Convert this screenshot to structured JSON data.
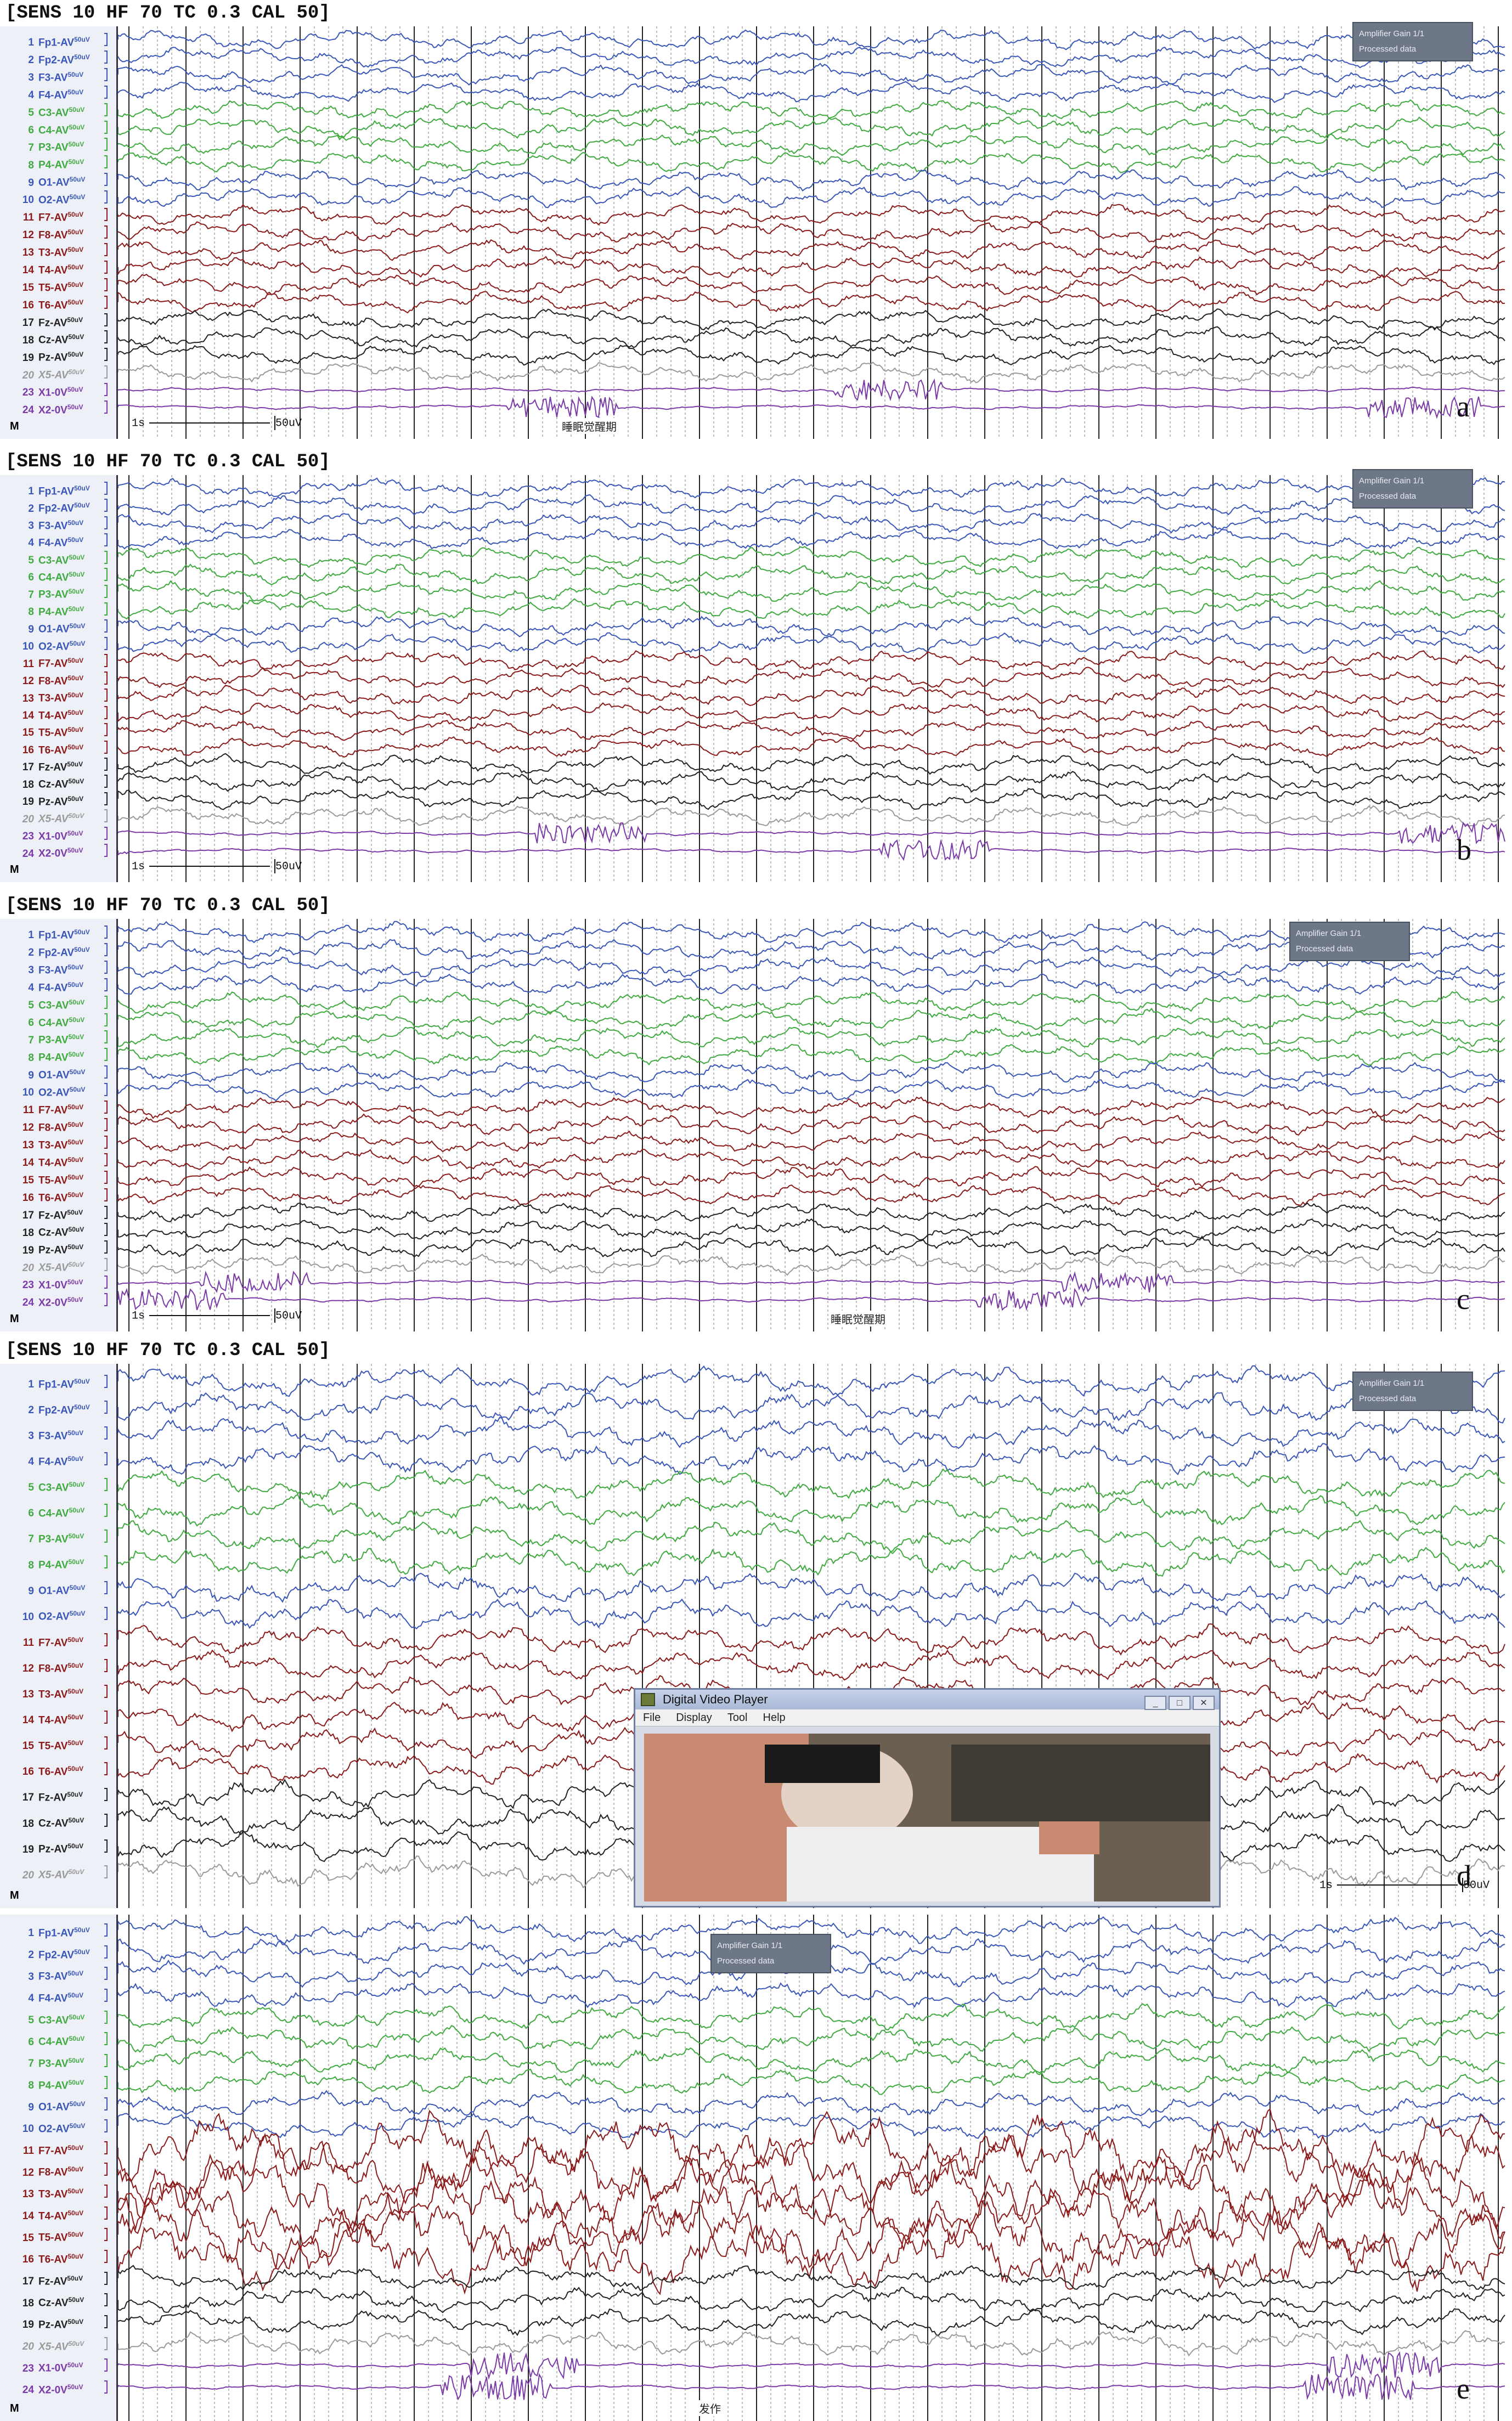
{
  "header_text": "[SENS 10  HF 70  TC 0.3  CAL 50]",
  "channels": [
    {
      "num": "1",
      "name": "Fp1-AV",
      "sens": "50uV",
      "color": "#3a57b8"
    },
    {
      "num": "2",
      "name": "Fp2-AV",
      "sens": "50uV",
      "color": "#3a57b8"
    },
    {
      "num": "3",
      "name": "F3-AV",
      "sens": "50uV",
      "color": "#3a57b8"
    },
    {
      "num": "4",
      "name": "F4-AV",
      "sens": "50uV",
      "color": "#3a57b8"
    },
    {
      "num": "5",
      "name": "C3-AV",
      "sens": "50uV",
      "color": "#3faa3f"
    },
    {
      "num": "6",
      "name": "C4-AV",
      "sens": "50uV",
      "color": "#3faa3f"
    },
    {
      "num": "7",
      "name": "P3-AV",
      "sens": "50uV",
      "color": "#3faa3f"
    },
    {
      "num": "8",
      "name": "P4-AV",
      "sens": "50uV",
      "color": "#3faa3f"
    },
    {
      "num": "9",
      "name": "O1-AV",
      "sens": "50uV",
      "color": "#3a57b8"
    },
    {
      "num": "10",
      "name": "O2-AV",
      "sens": "50uV",
      "color": "#3a57b8"
    },
    {
      "num": "11",
      "name": "F7-AV",
      "sens": "50uV",
      "color": "#8b1a1a"
    },
    {
      "num": "12",
      "name": "F8-AV",
      "sens": "50uV",
      "color": "#8b1a1a"
    },
    {
      "num": "13",
      "name": "T3-AV",
      "sens": "50uV",
      "color": "#8b1a1a"
    },
    {
      "num": "14",
      "name": "T4-AV",
      "sens": "50uV",
      "color": "#8b1a1a"
    },
    {
      "num": "15",
      "name": "T5-AV",
      "sens": "50uV",
      "color": "#8b1a1a"
    },
    {
      "num": "16",
      "name": "T6-AV",
      "sens": "50uV",
      "color": "#8b1a1a"
    },
    {
      "num": "17",
      "name": "Fz-AV",
      "sens": "50uV",
      "color": "#222222"
    },
    {
      "num": "18",
      "name": "Cz-AV",
      "sens": "50uV",
      "color": "#222222"
    },
    {
      "num": "19",
      "name": "Pz-AV",
      "sens": "50uV",
      "color": "#222222"
    },
    {
      "num": "20",
      "name": "X5-AV",
      "sens": "50uV",
      "color": "#9a9a9a"
    },
    {
      "num": "23",
      "name": "X1-0V",
      "sens": "50uV",
      "color": "#7a3aa8"
    },
    {
      "num": "24",
      "name": "X2-0V",
      "sens": "50uV",
      "color": "#7a3aa8"
    }
  ],
  "m_label": "M",
  "panels": [
    {
      "letter": "a",
      "amp_line1": "Amplifier Gain 1/1",
      "amp_line2": "Processed data",
      "scale_time": "1s",
      "scale_amp": "50uV",
      "annotation": "睡眠觉醒期"
    },
    {
      "letter": "b",
      "amp_line1": "Amplifier Gain 1/1",
      "amp_line2": "Processed data",
      "scale_time": "1s",
      "scale_amp": "50uV",
      "annotation": ""
    },
    {
      "letter": "c",
      "amp_line1": "Amplifier Gain 1/1",
      "amp_line2": "Processed data",
      "scale_time": "1s",
      "scale_amp": "50uV",
      "annotation": "睡眠觉醒期"
    },
    {
      "letter": "d",
      "amp_line1": "Amplifier Gain 1/1",
      "amp_line2": "Processed data",
      "scale_time": "1s",
      "scale_amp": "50uV",
      "annotation": ""
    },
    {
      "letter": "e",
      "amp_line1": "Amplifier Gain 1/1",
      "amp_line2": "Processed data",
      "scale_time": "",
      "scale_amp": "",
      "annotation": "发作"
    }
  ],
  "video_player": {
    "title": "Digital Video Player",
    "menu": [
      "File",
      "Display",
      "Tool",
      "Help"
    ],
    "buttons": [
      "_",
      "□",
      "✕"
    ]
  },
  "colors": {
    "frontal": "#3a57b8",
    "central": "#3faa3f",
    "temporal": "#8b1a1a",
    "midline": "#222222",
    "aux": "#9a9a9a",
    "marker": "#7a3aa8"
  }
}
